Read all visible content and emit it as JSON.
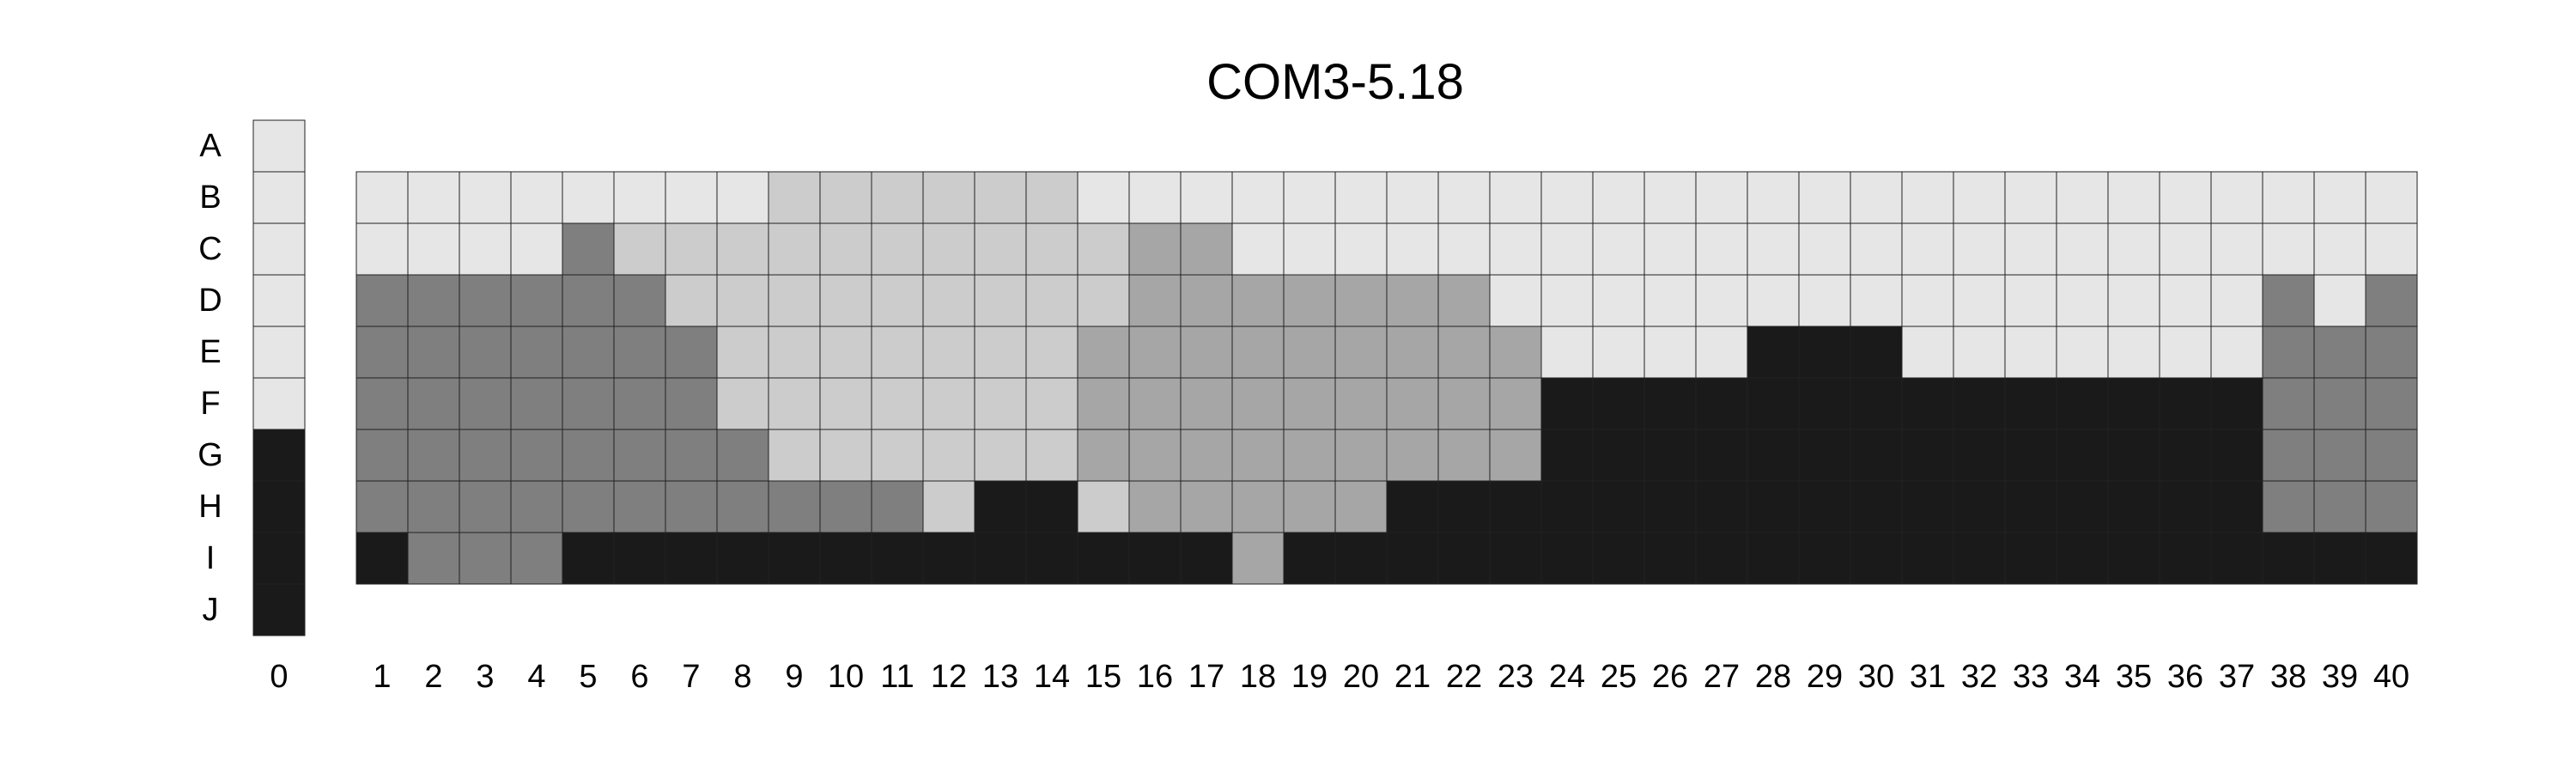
{
  "chart_data": {
    "type": "heatmap",
    "title": "COM3-5.18",
    "rows": [
      "A",
      "B",
      "C",
      "D",
      "E",
      "F",
      "G",
      "H",
      "I",
      "J"
    ],
    "ref_column": {
      "label": "0",
      "values": [
        0,
        0,
        0,
        0,
        0,
        0,
        4,
        4,
        4,
        4
      ]
    },
    "columns": [
      "1",
      "2",
      "3",
      "4",
      "5",
      "6",
      "7",
      "8",
      "9",
      "10",
      "11",
      "12",
      "13",
      "14",
      "15",
      "16",
      "17",
      "18",
      "19",
      "20",
      "21",
      "22",
      "23",
      "24",
      "25",
      "26",
      "27",
      "28",
      "29",
      "30",
      "31",
      "32",
      "33",
      "34",
      "35",
      "36",
      "37",
      "38",
      "39",
      "40"
    ],
    "grid_rows": [
      "B",
      "C",
      "D",
      "E",
      "F",
      "G",
      "H",
      "I"
    ],
    "levels": {
      "0": "#e6e6e6",
      "1": "#cccccc",
      "2": "#a6a6a6",
      "3": "#7f7f7f",
      "4": "#1a1a1a"
    },
    "values": [
      [
        0,
        0,
        0,
        0,
        0,
        0,
        0,
        0,
        1,
        1,
        1,
        1,
        1,
        1,
        0,
        0,
        0,
        0,
        0,
        0,
        0,
        0,
        0,
        0,
        0,
        0,
        0,
        0,
        0,
        0,
        0,
        0,
        0,
        0,
        0,
        0,
        0,
        0,
        0,
        0
      ],
      [
        0,
        0,
        0,
        0,
        3,
        1,
        1,
        1,
        1,
        1,
        1,
        1,
        1,
        1,
        1,
        2,
        2,
        0,
        0,
        0,
        0,
        0,
        0,
        0,
        0,
        0,
        0,
        0,
        0,
        0,
        0,
        0,
        0,
        0,
        0,
        0,
        0,
        0,
        0,
        0
      ],
      [
        3,
        3,
        3,
        3,
        3,
        3,
        1,
        1,
        1,
        1,
        1,
        1,
        1,
        1,
        1,
        2,
        2,
        2,
        2,
        2,
        2,
        2,
        0,
        0,
        0,
        0,
        0,
        0,
        0,
        0,
        0,
        0,
        0,
        0,
        0,
        0,
        0,
        3,
        0,
        3
      ],
      [
        3,
        3,
        3,
        3,
        3,
        3,
        3,
        1,
        1,
        1,
        1,
        1,
        1,
        1,
        2,
        2,
        2,
        2,
        2,
        2,
        2,
        2,
        2,
        0,
        0,
        0,
        0,
        4,
        4,
        4,
        0,
        0,
        0,
        0,
        0,
        0,
        0,
        3,
        3,
        3
      ],
      [
        3,
        3,
        3,
        3,
        3,
        3,
        3,
        1,
        1,
        1,
        1,
        1,
        1,
        1,
        2,
        2,
        2,
        2,
        2,
        2,
        2,
        2,
        2,
        4,
        4,
        4,
        4,
        4,
        4,
        4,
        4,
        4,
        4,
        4,
        4,
        4,
        4,
        3,
        3,
        3
      ],
      [
        3,
        3,
        3,
        3,
        3,
        3,
        3,
        3,
        1,
        1,
        1,
        1,
        1,
        1,
        2,
        2,
        2,
        2,
        2,
        2,
        2,
        2,
        2,
        4,
        4,
        4,
        4,
        4,
        4,
        4,
        4,
        4,
        4,
        4,
        4,
        4,
        4,
        3,
        3,
        3
      ],
      [
        3,
        3,
        3,
        3,
        3,
        3,
        3,
        3,
        3,
        3,
        3,
        1,
        4,
        4,
        1,
        2,
        2,
        2,
        2,
        2,
        4,
        4,
        4,
        4,
        4,
        4,
        4,
        4,
        4,
        4,
        4,
        4,
        4,
        4,
        4,
        4,
        4,
        3,
        3,
        3
      ],
      [
        4,
        3,
        3,
        3,
        4,
        4,
        4,
        4,
        4,
        4,
        4,
        4,
        4,
        4,
        4,
        4,
        4,
        2,
        4,
        4,
        4,
        4,
        4,
        4,
        4,
        4,
        4,
        4,
        4,
        4,
        4,
        4,
        4,
        4,
        4,
        4,
        4,
        4,
        4,
        4
      ]
    ]
  }
}
